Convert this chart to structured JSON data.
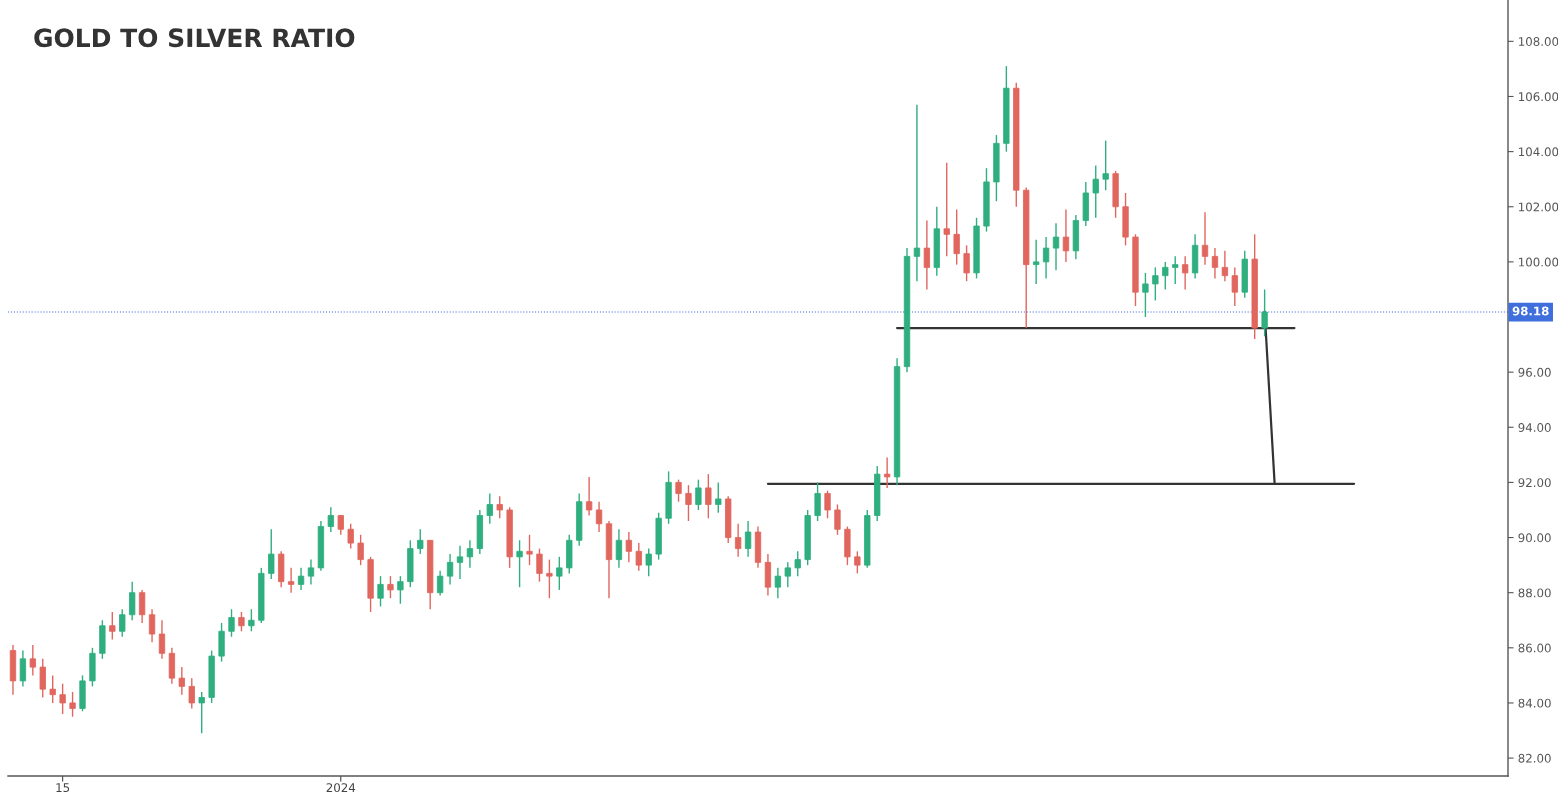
{
  "chart_data": {
    "type": "candlestick",
    "title": "GOLD TO SILVER RATIO",
    "categories": [
      null,
      null,
      null,
      null,
      null,
      "15",
      null,
      null,
      null,
      null,
      null,
      null,
      null,
      null,
      null,
      null,
      null,
      null,
      null,
      null,
      null,
      null,
      null,
      null,
      null,
      null,
      null,
      null,
      null,
      null,
      null,
      null,
      null,
      "2024",
      null,
      null,
      null,
      null,
      null,
      null,
      null,
      null,
      null,
      null,
      null,
      null,
      null,
      null,
      null,
      null,
      null,
      null,
      null,
      null,
      null,
      null,
      null,
      null,
      null,
      null,
      null,
      null,
      null,
      null,
      null,
      null,
      null,
      null,
      null,
      null,
      null,
      null,
      null,
      null,
      null,
      null,
      null,
      null,
      null,
      null,
      null,
      null,
      null,
      null,
      null,
      null,
      null,
      null,
      null,
      null,
      null,
      null,
      null,
      null,
      null,
      null,
      null,
      null,
      null,
      null,
      null,
      null,
      null,
      null,
      null,
      null,
      null,
      null,
      null,
      null,
      null,
      null,
      null,
      null,
      null,
      null,
      null,
      null,
      null,
      null,
      null,
      null,
      null,
      null,
      null,
      null,
      null,
      null,
      null,
      null,
      null,
      null,
      null,
      null,
      null,
      null,
      null,
      null,
      null,
      null,
      null,
      null,
      null,
      null,
      null,
      null,
      null,
      null,
      null,
      null,
      null
    ],
    "ohlc": [
      [
        85.9,
        86.1,
        84.3,
        84.8
      ],
      [
        84.8,
        85.9,
        84.6,
        85.6
      ],
      [
        85.6,
        86.1,
        85.0,
        85.3
      ],
      [
        85.3,
        85.6,
        84.2,
        84.5
      ],
      [
        84.5,
        85.0,
        84.0,
        84.3
      ],
      [
        84.3,
        84.7,
        83.6,
        84.0
      ],
      [
        84.0,
        84.4,
        83.5,
        83.8
      ],
      [
        83.8,
        85.0,
        83.7,
        84.8
      ],
      [
        84.8,
        86.0,
        84.6,
        85.8
      ],
      [
        85.8,
        87.0,
        85.6,
        86.8
      ],
      [
        86.8,
        87.3,
        86.3,
        86.6
      ],
      [
        86.6,
        87.4,
        86.4,
        87.2
      ],
      [
        87.2,
        88.4,
        87.0,
        88.0
      ],
      [
        88.0,
        88.1,
        86.9,
        87.2
      ],
      [
        87.2,
        87.4,
        86.2,
        86.5
      ],
      [
        86.5,
        87.0,
        85.6,
        85.8
      ],
      [
        85.8,
        86.0,
        84.7,
        84.9
      ],
      [
        84.9,
        85.3,
        84.3,
        84.6
      ],
      [
        84.6,
        84.9,
        83.8,
        84.0
      ],
      [
        84.0,
        84.4,
        82.9,
        84.2
      ],
      [
        84.2,
        85.9,
        84.0,
        85.7
      ],
      [
        85.7,
        86.9,
        85.5,
        86.6
      ],
      [
        86.6,
        87.4,
        86.4,
        87.1
      ],
      [
        87.1,
        87.3,
        86.6,
        86.8
      ],
      [
        86.8,
        87.4,
        86.6,
        87.0
      ],
      [
        87.0,
        88.9,
        86.9,
        88.7
      ],
      [
        88.7,
        90.3,
        88.5,
        89.4
      ],
      [
        89.4,
        89.5,
        88.2,
        88.4
      ],
      [
        88.4,
        88.9,
        88.0,
        88.3
      ],
      [
        88.3,
        88.9,
        88.1,
        88.6
      ],
      [
        88.6,
        89.2,
        88.3,
        88.9
      ],
      [
        88.9,
        90.6,
        88.8,
        90.4
      ],
      [
        90.4,
        91.1,
        90.2,
        90.8
      ],
      [
        90.8,
        90.8,
        90.1,
        90.3
      ],
      [
        90.3,
        90.5,
        89.6,
        89.8
      ],
      [
        89.8,
        90.1,
        89.0,
        89.2
      ],
      [
        89.2,
        89.3,
        87.3,
        87.8
      ],
      [
        87.8,
        88.6,
        87.5,
        88.3
      ],
      [
        88.3,
        88.6,
        87.8,
        88.1
      ],
      [
        88.1,
        88.6,
        87.6,
        88.4
      ],
      [
        88.4,
        89.9,
        88.2,
        89.6
      ],
      [
        89.6,
        90.3,
        89.4,
        89.9
      ],
      [
        89.9,
        89.9,
        87.4,
        88.0
      ],
      [
        88.0,
        88.8,
        87.9,
        88.6
      ],
      [
        88.6,
        89.4,
        88.3,
        89.1
      ],
      [
        89.1,
        89.7,
        88.5,
        89.3
      ],
      [
        89.3,
        89.9,
        88.9,
        89.6
      ],
      [
        89.6,
        91.0,
        89.4,
        90.8
      ],
      [
        90.8,
        91.6,
        90.5,
        91.2
      ],
      [
        91.2,
        91.5,
        90.7,
        91.0
      ],
      [
        91.0,
        91.1,
        88.9,
        89.3
      ],
      [
        89.3,
        89.9,
        88.2,
        89.5
      ],
      [
        89.5,
        90.1,
        89.0,
        89.4
      ],
      [
        89.4,
        89.6,
        88.4,
        88.7
      ],
      [
        88.7,
        89.2,
        87.8,
        88.6
      ],
      [
        88.6,
        89.3,
        88.1,
        88.9
      ],
      [
        88.9,
        90.1,
        88.7,
        89.9
      ],
      [
        89.9,
        91.6,
        89.7,
        91.3
      ],
      [
        91.3,
        92.2,
        90.8,
        91.0
      ],
      [
        91.0,
        91.3,
        90.2,
        90.5
      ],
      [
        90.5,
        90.6,
        87.8,
        89.2
      ],
      [
        89.2,
        90.3,
        88.9,
        89.9
      ],
      [
        89.9,
        90.2,
        89.1,
        89.5
      ],
      [
        89.5,
        89.8,
        88.8,
        89.0
      ],
      [
        89.0,
        89.6,
        88.6,
        89.4
      ],
      [
        89.4,
        90.9,
        89.2,
        90.7
      ],
      [
        90.7,
        92.4,
        90.5,
        92.0
      ],
      [
        92.0,
        92.1,
        91.3,
        91.6
      ],
      [
        91.6,
        91.9,
        90.6,
        91.2
      ],
      [
        91.2,
        92.1,
        91.0,
        91.8
      ],
      [
        91.8,
        92.3,
        90.7,
        91.2
      ],
      [
        91.2,
        92.0,
        90.9,
        91.4
      ],
      [
        91.4,
        91.5,
        89.8,
        90.0
      ],
      [
        90.0,
        90.5,
        89.3,
        89.6
      ],
      [
        89.6,
        90.6,
        89.3,
        90.2
      ],
      [
        90.2,
        90.4,
        88.9,
        89.1
      ],
      [
        89.1,
        89.4,
        87.9,
        88.2
      ],
      [
        88.2,
        88.9,
        87.8,
        88.6
      ],
      [
        88.6,
        89.1,
        88.2,
        88.9
      ],
      [
        88.9,
        89.5,
        88.6,
        89.2
      ],
      [
        89.2,
        91.0,
        89.0,
        90.8
      ],
      [
        90.8,
        92.0,
        90.6,
        91.6
      ],
      [
        91.6,
        91.7,
        90.7,
        91.0
      ],
      [
        91.0,
        91.2,
        90.1,
        90.3
      ],
      [
        90.3,
        90.4,
        89.0,
        89.3
      ],
      [
        89.3,
        89.5,
        88.7,
        89.0
      ],
      [
        89.0,
        91.0,
        88.9,
        90.8
      ],
      [
        90.8,
        92.6,
        90.6,
        92.3
      ],
      [
        92.3,
        92.9,
        91.8,
        92.2
      ],
      [
        92.2,
        96.5,
        91.9,
        96.2
      ],
      [
        96.2,
        100.5,
        96.0,
        100.2
      ],
      [
        100.2,
        105.7,
        99.3,
        100.5
      ],
      [
        100.5,
        101.5,
        99.0,
        99.8
      ],
      [
        99.8,
        102.0,
        99.5,
        101.2
      ],
      [
        101.2,
        103.6,
        100.2,
        101.0
      ],
      [
        101.0,
        101.9,
        99.9,
        100.3
      ],
      [
        100.3,
        100.6,
        99.3,
        99.6
      ],
      [
        99.6,
        101.6,
        99.4,
        101.3
      ],
      [
        101.3,
        103.4,
        101.1,
        102.9
      ],
      [
        102.9,
        104.6,
        102.2,
        104.3
      ],
      [
        104.3,
        107.1,
        104.0,
        106.3
      ],
      [
        106.3,
        106.5,
        102.0,
        102.6
      ],
      [
        102.6,
        102.7,
        97.6,
        99.9
      ],
      [
        99.9,
        100.8,
        99.2,
        100.0
      ],
      [
        100.0,
        100.9,
        99.4,
        100.5
      ],
      [
        100.5,
        101.4,
        99.7,
        100.9
      ],
      [
        100.9,
        101.9,
        100.0,
        100.4
      ],
      [
        100.4,
        101.7,
        100.1,
        101.5
      ],
      [
        101.5,
        102.9,
        101.3,
        102.5
      ],
      [
        102.5,
        103.5,
        101.6,
        103.0
      ],
      [
        103.0,
        104.4,
        102.6,
        103.2
      ],
      [
        103.2,
        103.3,
        101.6,
        102.0
      ],
      [
        102.0,
        102.5,
        100.6,
        100.9
      ],
      [
        100.9,
        101.0,
        98.4,
        98.9
      ],
      [
        98.9,
        99.6,
        98.0,
        99.2
      ],
      [
        99.2,
        99.8,
        98.6,
        99.5
      ],
      [
        99.5,
        100.0,
        99.0,
        99.8
      ],
      [
        99.8,
        100.2,
        99.2,
        99.9
      ],
      [
        99.9,
        100.2,
        99.0,
        99.6
      ],
      [
        99.6,
        101.0,
        99.4,
        100.6
      ],
      [
        100.6,
        101.8,
        99.9,
        100.2
      ],
      [
        100.2,
        100.5,
        99.4,
        99.8
      ],
      [
        99.8,
        100.4,
        99.3,
        99.5
      ],
      [
        99.5,
        99.8,
        98.4,
        98.9
      ],
      [
        98.9,
        100.4,
        98.7,
        100.1
      ],
      [
        100.1,
        101.0,
        97.2,
        97.6
      ],
      [
        97.6,
        99.0,
        97.3,
        98.18
      ],
      null,
      null,
      null,
      null,
      null,
      null,
      null,
      null,
      null,
      null,
      null,
      null,
      null,
      null,
      null,
      null,
      null,
      null,
      null,
      null,
      null,
      null,
      null,
      null
    ],
    "colors": [
      "#e0665e",
      "#2fae7f",
      "#e0665e",
      "#e0665e",
      "#e0665e",
      "#e0665e",
      "#e0665e",
      "#2fae7f",
      "#2fae7f",
      "#2fae7f",
      "#e0665e",
      "#2fae7f",
      "#2fae7f",
      "#e0665e",
      "#e0665e",
      "#e0665e",
      "#e0665e",
      "#e0665e",
      "#e0665e",
      "#2fae7f",
      "#2fae7f",
      "#2fae7f",
      "#2fae7f",
      "#e0665e",
      "#2fae7f",
      "#2fae7f",
      "#2fae7f",
      "#e0665e",
      "#e0665e",
      "#2fae7f",
      "#2fae7f",
      "#2fae7f",
      "#2fae7f",
      "#e0665e",
      "#e0665e",
      "#e0665e",
      "#e0665e",
      "#2fae7f",
      "#e0665e",
      "#2fae7f",
      "#2fae7f",
      "#2fae7f",
      "#e0665e",
      "#2fae7f",
      "#2fae7f",
      "#2fae7f",
      "#2fae7f",
      "#2fae7f",
      "#2fae7f",
      "#e0665e",
      "#e0665e",
      "#2fae7f",
      "#e0665e",
      "#e0665e",
      "#e0665e",
      "#2fae7f",
      "#2fae7f",
      "#2fae7f",
      "#e0665e",
      "#e0665e",
      "#e0665e",
      "#2fae7f",
      "#e0665e",
      "#e0665e",
      "#2fae7f",
      "#2fae7f",
      "#2fae7f",
      "#e0665e",
      "#e0665e",
      "#2fae7f",
      "#e0665e",
      "#2fae7f",
      "#e0665e",
      "#e0665e",
      "#2fae7f",
      "#e0665e",
      "#e0665e",
      "#2fae7f",
      "#2fae7f",
      "#2fae7f",
      "#2fae7f",
      "#2fae7f",
      "#e0665e",
      "#e0665e",
      "#e0665e",
      "#e0665e",
      "#2fae7f",
      "#2fae7f",
      "#e0665e",
      "#2fae7f",
      "#2fae7f",
      "#2fae7f",
      "#e0665e",
      "#2fae7f",
      "#e0665e",
      "#e0665e",
      "#e0665e",
      "#2fae7f",
      "#2fae7f",
      "#2fae7f",
      "#2fae7f",
      "#e0665e",
      "#e0665e",
      "#2fae7f",
      "#2fae7f",
      "#2fae7f",
      "#e0665e",
      "#2fae7f",
      "#2fae7f",
      "#2fae7f",
      "#2fae7f",
      "#e0665e",
      "#e0665e",
      "#e0665e",
      "#2fae7f",
      "#2fae7f",
      "#2fae7f",
      "#2fae7f",
      "#e0665e",
      "#2fae7f",
      "#e0665e",
      "#e0665e",
      "#e0665e",
      "#e0665e",
      "#2fae7f",
      "#e0665e",
      "#2fae7f",
      null,
      null,
      null,
      null,
      null,
      null,
      null,
      null,
      null,
      null,
      null,
      null,
      null,
      null,
      null,
      null,
      null,
      null,
      null,
      null,
      null,
      null,
      null,
      null
    ],
    "series": [
      {
        "type": "line",
        "color": "#333333",
        "values": [
          null,
          null,
          null,
          null,
          null,
          null,
          null,
          null,
          null,
          null,
          null,
          null,
          null,
          null,
          null,
          null,
          null,
          null,
          null,
          null,
          null,
          null,
          null,
          null,
          null,
          null,
          null,
          null,
          null,
          null,
          null,
          null,
          null,
          null,
          null,
          null,
          null,
          null,
          null,
          null,
          null,
          null,
          null,
          null,
          null,
          null,
          null,
          null,
          null,
          null,
          null,
          null,
          null,
          null,
          null,
          null,
          null,
          null,
          null,
          null,
          null,
          null,
          null,
          null,
          null,
          null,
          null,
          null,
          null,
          null,
          null,
          null,
          null,
          null,
          null,
          null,
          null,
          null,
          null,
          null,
          null,
          null,
          null,
          null,
          null,
          null,
          null,
          null,
          null,
          97.6,
          97.6,
          97.6,
          97.6,
          97.6,
          97.6,
          97.6,
          97.6,
          97.6,
          97.6,
          97.6,
          97.6,
          97.6,
          97.6,
          97.6,
          97.6,
          97.6,
          97.6,
          97.6,
          97.6,
          97.6,
          97.6,
          97.6,
          97.6,
          97.6,
          97.6,
          97.6,
          97.6,
          97.6,
          97.6,
          97.6,
          97.6,
          97.6,
          97.6,
          97.6,
          97.6,
          97.6,
          97.6,
          97.6,
          97.6,
          97.6,
          null,
          null,
          null,
          null,
          null,
          null,
          null,
          null,
          null,
          null,
          null,
          null,
          null,
          null,
          null,
          null,
          null,
          null,
          null,
          null,
          null
        ]
      },
      {
        "type": "line",
        "color": "#333333",
        "values": [
          null,
          null,
          null,
          null,
          null,
          null,
          null,
          null,
          null,
          null,
          null,
          null,
          null,
          null,
          null,
          null,
          null,
          null,
          null,
          null,
          null,
          null,
          null,
          null,
          null,
          null,
          null,
          null,
          null,
          null,
          null,
          null,
          null,
          null,
          null,
          null,
          null,
          null,
          null,
          null,
          null,
          null,
          null,
          null,
          null,
          null,
          null,
          null,
          null,
          null,
          null,
          null,
          null,
          null,
          null,
          null,
          null,
          null,
          null,
          null,
          null,
          null,
          null,
          null,
          null,
          null,
          null,
          null,
          null,
          null,
          null,
          null,
          null,
          null,
          null,
          null,
          91.95,
          91.95,
          91.95,
          91.95,
          91.95,
          91.95,
          91.95,
          91.95,
          91.95,
          91.95,
          91.95,
          91.95,
          91.95,
          91.95,
          91.95,
          91.95,
          91.95,
          91.95,
          91.95,
          91.95,
          91.95,
          91.95,
          91.95,
          91.95,
          91.95,
          91.95,
          91.95,
          91.95,
          91.95,
          91.95,
          91.95,
          91.95,
          91.95,
          91.95,
          91.95,
          91.95,
          91.95,
          91.95,
          91.95,
          91.95,
          91.95,
          91.95,
          91.95,
          91.95,
          91.95,
          91.95,
          91.95,
          91.95,
          91.95,
          91.95,
          91.95,
          91.95,
          91.95,
          91.95,
          91.95,
          91.95,
          91.95,
          91.95,
          91.95,
          91.95,
          null,
          null,
          null,
          null,
          null,
          null,
          null,
          null,
          null,
          null,
          null,
          null,
          null,
          null,
          null
        ]
      },
      {
        "type": "line",
        "color": "#333333",
        "values": [
          null,
          null,
          null,
          null,
          null,
          null,
          null,
          null,
          null,
          null,
          null,
          null,
          null,
          null,
          null,
          null,
          null,
          null,
          null,
          null,
          null,
          null,
          null,
          null,
          null,
          null,
          null,
          null,
          null,
          null,
          null,
          null,
          null,
          null,
          null,
          null,
          null,
          null,
          null,
          null,
          null,
          null,
          null,
          null,
          null,
          null,
          null,
          null,
          null,
          null,
          null,
          null,
          null,
          null,
          null,
          null,
          null,
          null,
          null,
          null,
          null,
          null,
          null,
          null,
          null,
          null,
          null,
          null,
          null,
          null,
          null,
          null,
          null,
          null,
          null,
          null,
          null,
          null,
          null,
          null,
          null,
          null,
          null,
          null,
          null,
          null,
          null,
          null,
          null,
          null,
          null,
          null,
          null,
          null,
          null,
          null,
          null,
          null,
          null,
          null,
          null,
          null,
          null,
          null,
          null,
          null,
          null,
          null,
          null,
          null,
          null,
          null,
          null,
          null,
          null,
          null,
          null,
          null,
          null,
          null,
          null,
          null,
          null,
          null,
          null,
          null,
          98.2,
          92.0,
          null,
          null,
          null,
          null,
          null,
          null,
          null,
          null,
          null,
          null,
          null,
          null,
          null,
          null,
          null,
          null,
          null,
          null,
          null,
          null,
          null,
          null,
          null
        ]
      }
    ],
    "ylim": [
      81.35,
      109.5
    ],
    "yticks": [
      {
        "value": 82,
        "label": "82.00"
      },
      {
        "value": 84,
        "label": "84.00"
      },
      {
        "value": 86,
        "label": "86.00"
      },
      {
        "value": 88,
        "label": "88.00"
      },
      {
        "value": 90,
        "label": "90.00"
      },
      {
        "value": 92,
        "label": "92.00"
      },
      {
        "value": 94,
        "label": "94.00"
      },
      {
        "value": 96,
        "label": "96.00"
      },
      {
        "value": 100,
        "label": "100.00"
      },
      {
        "value": 102,
        "label": "102.00"
      },
      {
        "value": 104,
        "label": "104.00"
      },
      {
        "value": 106,
        "label": "106.00"
      },
      {
        "value": 108,
        "label": "108.00"
      }
    ],
    "ref_lines": [
      {
        "axis": "y",
        "value": 98.18,
        "label": "98.18",
        "color": "#3f6fdc",
        "line_style": "dotted"
      }
    ]
  }
}
